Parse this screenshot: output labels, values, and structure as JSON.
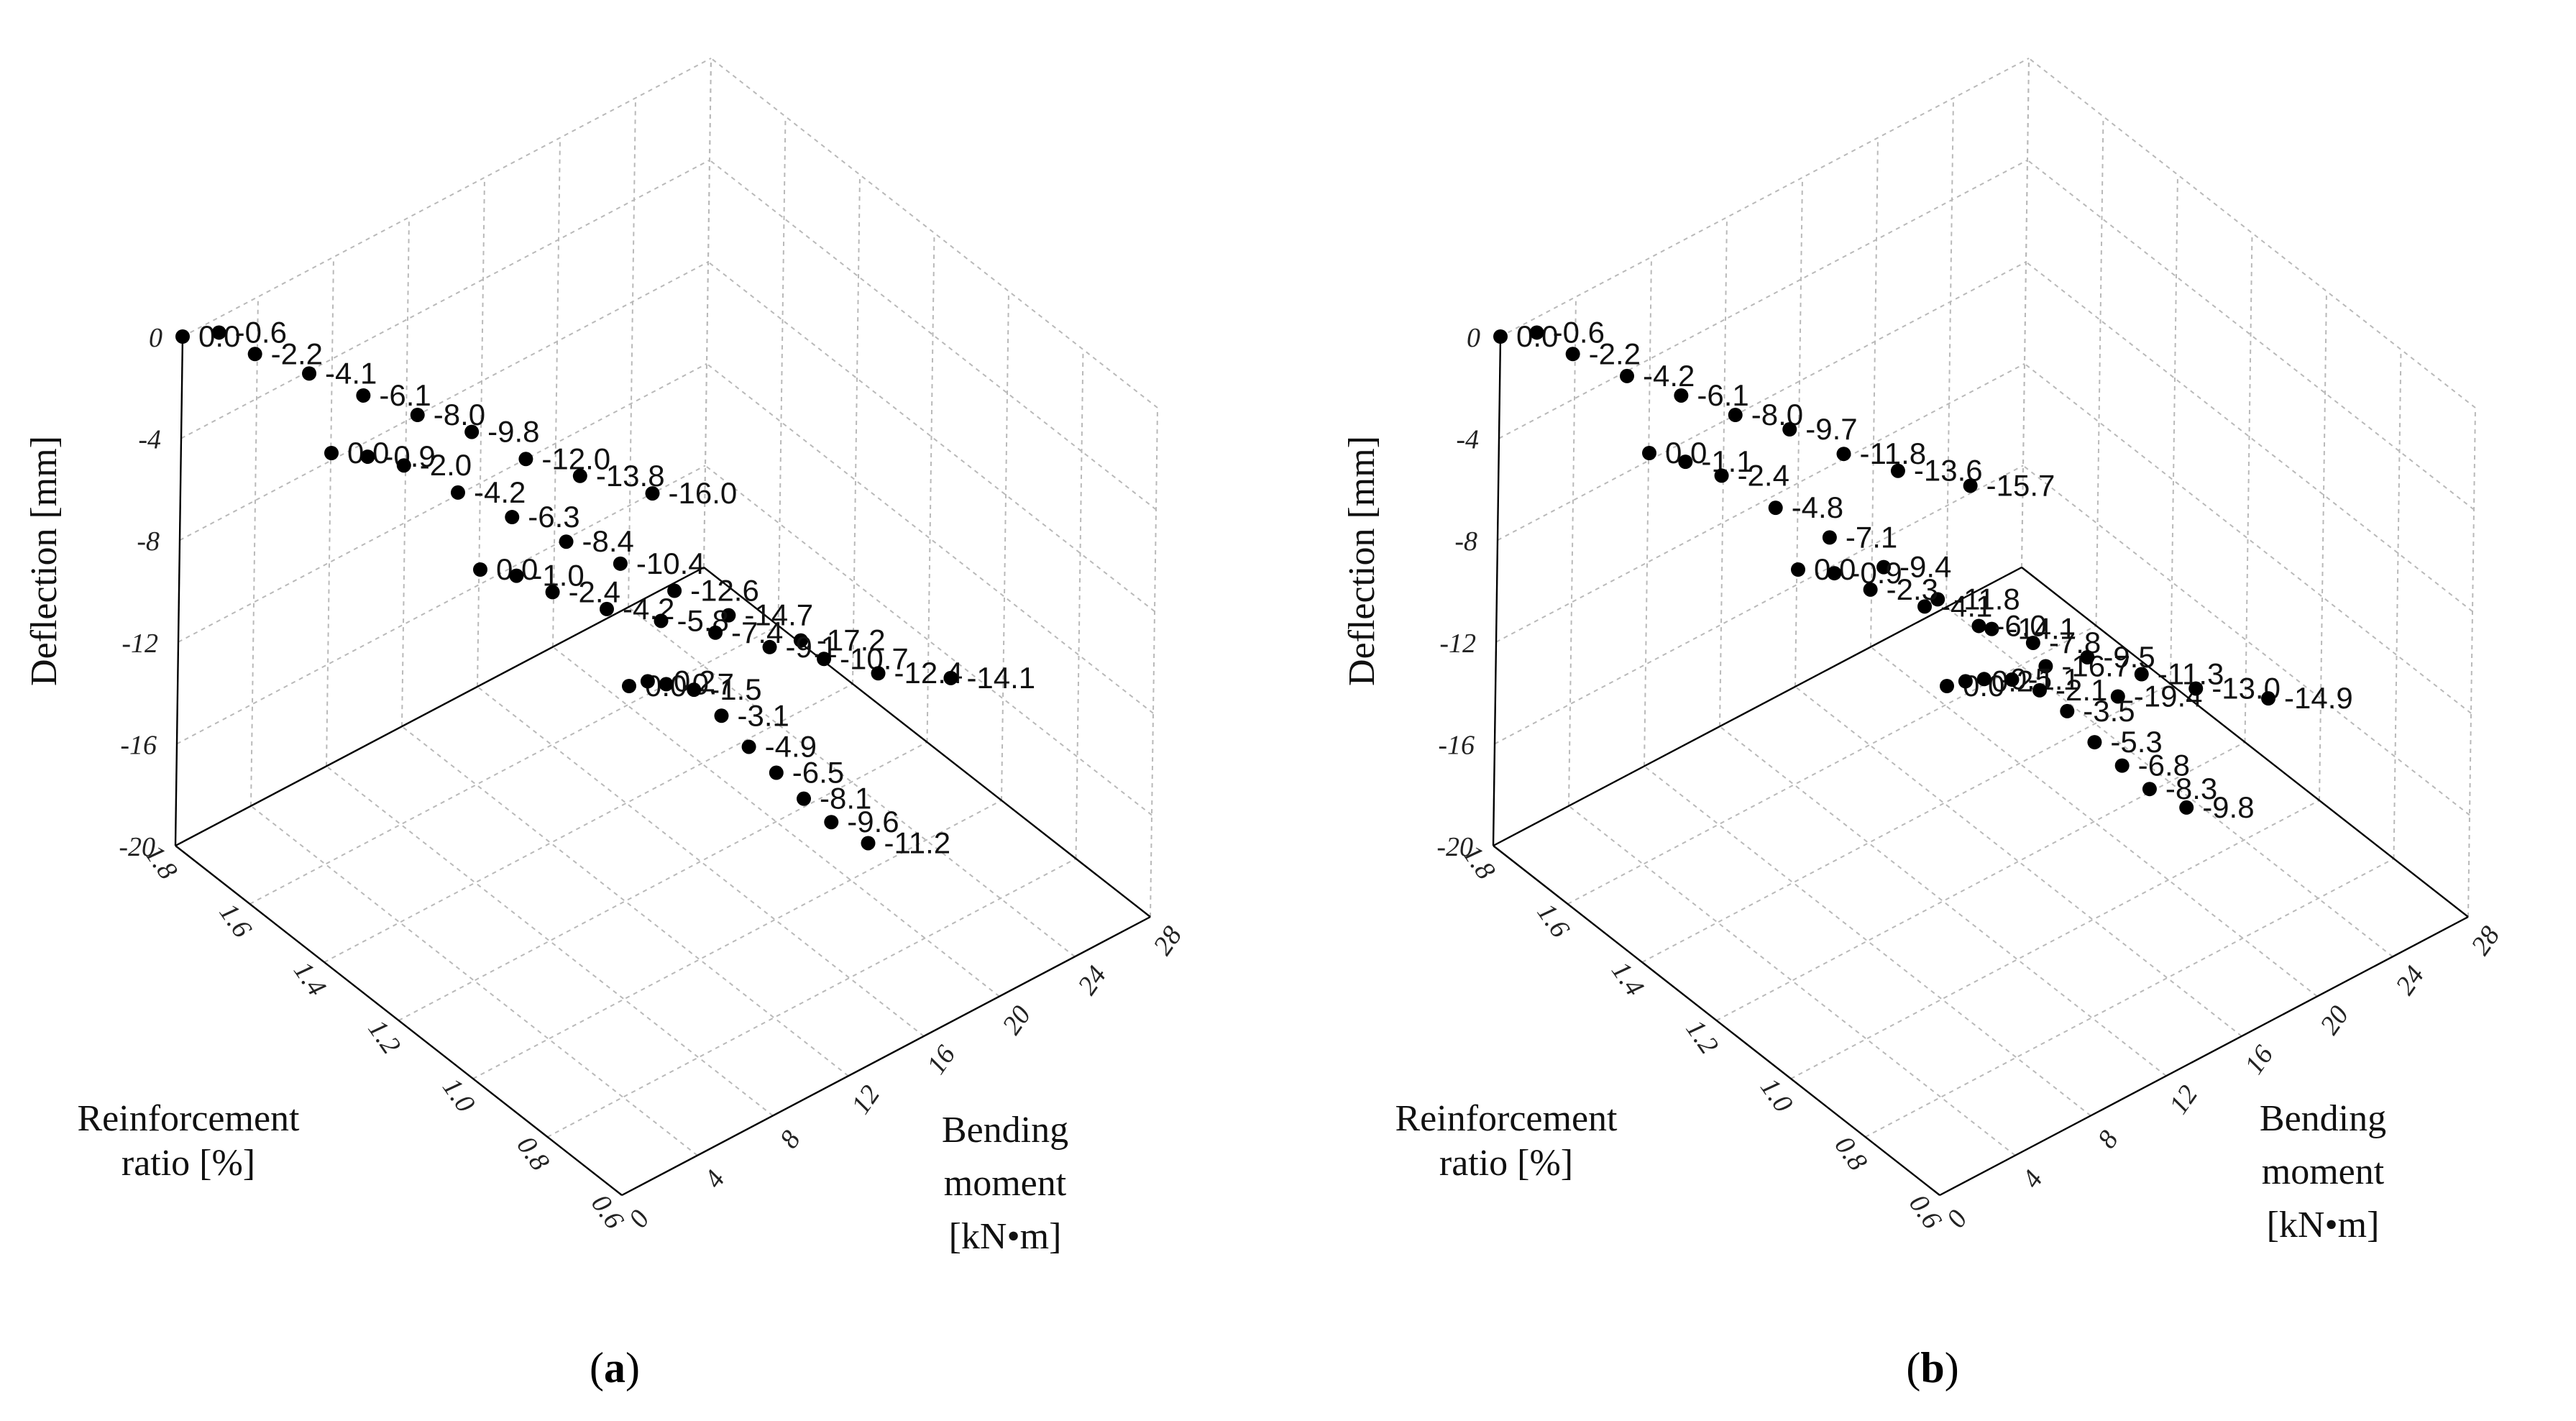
{
  "chart_data": [
    {
      "type": "scatter3d",
      "panel_label": "a",
      "zlabel": "Deflection [mm]",
      "xlabel_lines": [
        "Reinforcement",
        "ratio [%]"
      ],
      "ylabel_lines": [
        "Bending",
        "moment",
        "[kN•m]"
      ],
      "x_ticks": [
        "0.6",
        "0.8",
        "1.0",
        "1.2",
        "1.4",
        "1.6",
        "1.8"
      ],
      "y_ticks": [
        "0",
        "4",
        "8",
        "12",
        "16",
        "20",
        "24",
        "28"
      ],
      "z_ticks": [
        "0",
        "-4",
        "-8",
        "-12",
        "-16",
        "-20"
      ],
      "xlim": [
        0.6,
        1.8
      ],
      "ylim": [
        0,
        28
      ],
      "zlim": [
        -20,
        0
      ],
      "series": [
        {
          "name": "Reinforcement ratio 1.8%",
          "values": [
            0.0,
            -0.6,
            -2.2,
            -4.1,
            -6.1,
            -8.0,
            -9.8,
            -12.0,
            -13.8,
            -16.0
          ],
          "labels": [
            "0.0",
            "-0.6",
            "-2.2",
            "-4.1",
            "-6.1",
            "-8.0",
            "-9.8",
            "-12.0",
            "-13.8",
            "-16.0"
          ]
        },
        {
          "name": "Reinforcement ratio 1.4%",
          "values": [
            0.0,
            -0.9,
            -2.0,
            -4.2,
            -6.3,
            -8.4,
            -10.4,
            -12.6,
            -14.7,
            -17.2
          ],
          "labels": [
            "0.0",
            "-0.9",
            "-2.0",
            "-4.2",
            "-6.3",
            "-8.4",
            "-10.4",
            "-12.6",
            "-14.7",
            "-17.2"
          ]
        },
        {
          "name": "Reinforcement ratio 1.0%",
          "values": [
            0.0,
            -1.0,
            -2.4,
            -4.2,
            -5.8,
            -7.4,
            -9.1,
            -10.7,
            -12.4,
            -14.1
          ],
          "labels": [
            "0.0",
            "-1.0",
            "-2.4",
            "-4.2",
            "-5.8",
            "-7.4",
            "-9.1",
            "-10.7",
            "-12.4",
            "-14.1"
          ]
        },
        {
          "name": "Reinforcement ratio 0.6%",
          "values": [
            0.0,
            -0.2,
            -0.7,
            -1.5,
            -3.1,
            -4.9,
            -6.5,
            -8.1,
            -9.6,
            -11.2
          ],
          "labels": [
            "0.0",
            "-0.2",
            "-0.7",
            "-1.5",
            "-3.1",
            "-4.9",
            "-6.5",
            "-8.1",
            "-9.6",
            "-11.2"
          ]
        }
      ]
    },
    {
      "type": "scatter3d",
      "panel_label": "b",
      "zlabel": "Deflection [mm]",
      "xlabel_lines": [
        "Reinforcement",
        "ratio [%]"
      ],
      "ylabel_lines": [
        "Bending",
        "moment",
        "[kN•m]"
      ],
      "x_ticks": [
        "0.6",
        "0.8",
        "1.0",
        "1.2",
        "1.4",
        "1.6",
        "1.8"
      ],
      "y_ticks": [
        "0",
        "4",
        "8",
        "12",
        "16",
        "20",
        "24",
        "28"
      ],
      "z_ticks": [
        "0",
        "-4",
        "-8",
        "-12",
        "-16",
        "-20"
      ],
      "xlim": [
        0.6,
        1.8
      ],
      "ylim": [
        0,
        28
      ],
      "zlim": [
        -20,
        0
      ],
      "series": [
        {
          "name": "Reinforcement ratio 1.8%",
          "values": [
            0.0,
            -0.6,
            -2.2,
            -4.2,
            -6.1,
            -8.0,
            -9.7,
            -11.8,
            -13.6,
            -15.7
          ],
          "labels": [
            "0.0",
            "-0.6",
            "-2.2",
            "-4.2",
            "-6.1",
            "-8.0",
            "-9.7",
            "-11.8",
            "-13.6",
            "-15.7"
          ]
        },
        {
          "name": "Reinforcement ratio 1.4%",
          "values": [
            0.0,
            -1.1,
            -2.4,
            -4.8,
            -7.1,
            -9.4,
            -11.8,
            -14.1,
            -16.7,
            -19.4
          ],
          "labels": [
            "0.0",
            "-1.1",
            "-2.4",
            "-4.8",
            "-7.1",
            "-9.4",
            "-11.8",
            "-14.1",
            "-16.7",
            "-19.4"
          ]
        },
        {
          "name": "Reinforcement ratio 1.0%",
          "values": [
            0.0,
            -0.9,
            -2.3,
            -4.1,
            -6.0,
            -7.8,
            -9.5,
            -11.3,
            -13.0,
            -14.9
          ],
          "labels": [
            "0.0",
            "-0.9",
            "-2.3",
            "-4.1",
            "-6.0",
            "-7.8",
            "-9.5",
            "-11.3",
            "-13.0",
            "-14.9"
          ]
        },
        {
          "name": "Reinforcement ratio 0.6%",
          "values": [
            0.0,
            -0.2,
            -0.5,
            -1.1,
            -2.1,
            -3.5,
            -5.3,
            -6.8,
            -8.3,
            -9.8
          ],
          "labels": [
            "0.0",
            "-0.2",
            "-0.5",
            "-1.1",
            "-2.1",
            "-3.5",
            "-5.3",
            "-6.8",
            "-8.3",
            "-9.8"
          ]
        }
      ]
    }
  ]
}
